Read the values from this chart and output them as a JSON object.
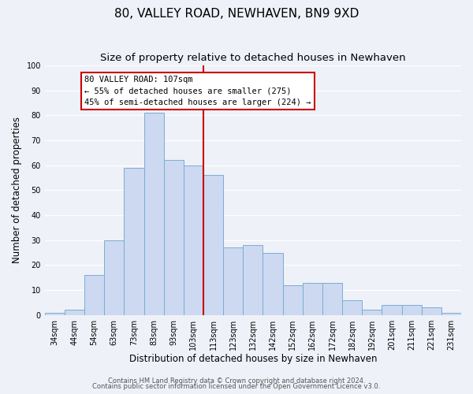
{
  "title": "80, VALLEY ROAD, NEWHAVEN, BN9 9XD",
  "subtitle": "Size of property relative to detached houses in Newhaven",
  "xlabel": "Distribution of detached houses by size in Newhaven",
  "ylabel": "Number of detached properties",
  "bar_labels": [
    "34sqm",
    "44sqm",
    "54sqm",
    "63sqm",
    "73sqm",
    "83sqm",
    "93sqm",
    "103sqm",
    "113sqm",
    "123sqm",
    "132sqm",
    "142sqm",
    "152sqm",
    "162sqm",
    "172sqm",
    "182sqm",
    "192sqm",
    "201sqm",
    "211sqm",
    "221sqm",
    "231sqm"
  ],
  "bar_values": [
    1,
    2,
    16,
    30,
    59,
    81,
    62,
    60,
    56,
    27,
    28,
    25,
    12,
    13,
    13,
    6,
    2,
    4,
    4,
    3,
    1
  ],
  "bar_color": "#ccd9f0",
  "bar_edgecolor": "#7aadd4",
  "vline_x": 7.5,
  "vline_color": "#cc0000",
  "annotation_title": "80 VALLEY ROAD: 107sqm",
  "annotation_line1": "← 55% of detached houses are smaller (275)",
  "annotation_line2": "45% of semi-detached houses are larger (224) →",
  "annotation_box_facecolor": "#ffffff",
  "annotation_box_edgecolor": "#cc0000",
  "ylim": [
    0,
    100
  ],
  "yticks": [
    0,
    10,
    20,
    30,
    40,
    50,
    60,
    70,
    80,
    90,
    100
  ],
  "background_color": "#eef1f8",
  "plot_background": "#eef1f8",
  "grid_color": "#ffffff",
  "footer1": "Contains HM Land Registry data © Crown copyright and database right 2024.",
  "footer2": "Contains public sector information licensed under the Open Government Licence v3.0.",
  "title_fontsize": 11,
  "subtitle_fontsize": 9.5,
  "axis_label_fontsize": 8.5,
  "tick_fontsize": 7,
  "annotation_fontsize": 7.5,
  "footer_fontsize": 6
}
